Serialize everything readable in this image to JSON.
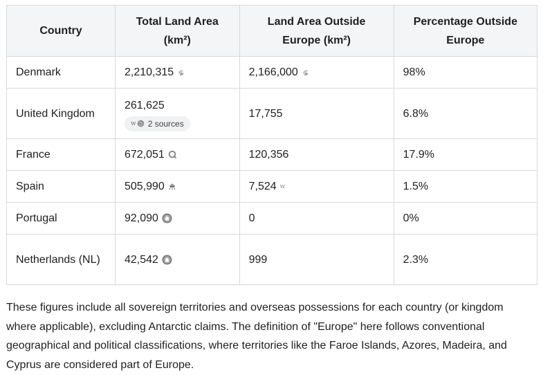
{
  "table": {
    "headers": {
      "country": "Country",
      "total": "Total Land Area (km²)",
      "outside": "Land Area Outside Europe (km²)",
      "percent": "Percentage Outside Europe"
    },
    "rows": [
      {
        "country": "Denmark",
        "total": "2,210,315",
        "outside": "2,166,000",
        "percent": "98%"
      },
      {
        "country": "United Kingdom",
        "total": "261,625",
        "outside": "17,755",
        "percent": "6.8%",
        "sources_label": "2 sources"
      },
      {
        "country": "France",
        "total": "672,051",
        "outside": "120,356",
        "percent": "17.9%"
      },
      {
        "country": "Spain",
        "total": "505,990",
        "outside": "7,524",
        "percent": "1.5%"
      },
      {
        "country": "Portugal",
        "total": "92,090",
        "outside": "0",
        "percent": "0%"
      },
      {
        "country": "Netherlands (NL)",
        "total": "42,542",
        "outside": "999",
        "percent": "2.3%"
      }
    ]
  },
  "note": "These figures include all sovereign territories and overseas possessions for each country (or kingdom where applicable), excluding Antarctic claims. The definition of \"Europe\" here follows conventional geographical and political classifications, where territories like the Faroe Islands, Azores, Madeira, and Cyprus are considered part of Europe.",
  "icons": {
    "denmark_total": "source-swirl-icon",
    "denmark_outside": "source-swirl-icon",
    "uk_sources": "wikipedia-icon",
    "france_total": "source-search-icon",
    "spain_total": "source-globe-icon",
    "spain_outside": "wikipedia-icon",
    "portugal_total": "source-seal-icon",
    "netherlands_total": "source-seal-icon"
  }
}
